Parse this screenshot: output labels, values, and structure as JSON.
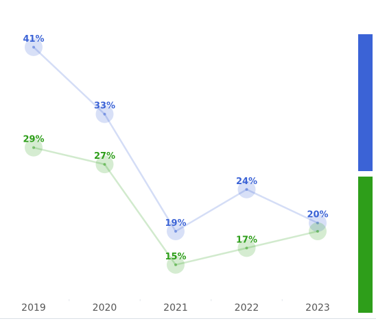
{
  "chart_data": {
    "type": "line",
    "title": "",
    "xlabel": "",
    "ylabel": "",
    "x": [
      "2019",
      "2020",
      "2021",
      "2022",
      "2023"
    ],
    "ylim": [
      10,
      45
    ],
    "grid": false,
    "legend": "none",
    "value_suffix": "%",
    "series": [
      {
        "color": "#3b63d6",
        "values": [
          41,
          33,
          19,
          24,
          20
        ]
      },
      {
        "color": "#2e9e1a",
        "values": [
          29,
          27,
          15,
          17,
          19
        ]
      }
    ],
    "data_labels": [
      [
        "41%",
        "33%",
        "19%",
        "24%",
        "20%"
      ],
      [
        "29%",
        "27%",
        "15%",
        "17%",
        ""
      ]
    ],
    "side_bars": [
      {
        "color": "#3b63d6"
      },
      {
        "color": "#2e9e1a"
      }
    ]
  }
}
